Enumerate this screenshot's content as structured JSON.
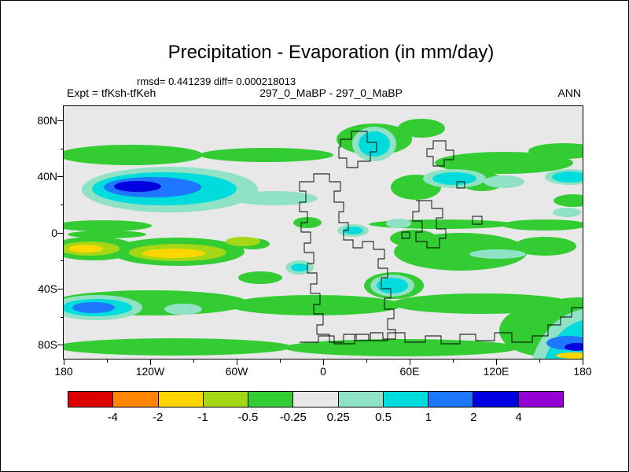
{
  "header": {
    "title": "Precipitation - Evaporation (in mm/day)",
    "stats_line": "rmsd= 0.441239 diff= 0.000218013",
    "case_line": "297_0_MaBP - 297_0_MaBP",
    "expt_label": "Expt = tfKsh-tfKeh",
    "season_label": "ANN"
  },
  "axes": {
    "y_ticks": [
      {
        "label": "80N",
        "lat": 80
      },
      {
        "label": "40N",
        "lat": 40
      },
      {
        "label": "0",
        "lat": 0
      },
      {
        "label": "40S",
        "lat": -40
      },
      {
        "label": "80S",
        "lat": -80
      }
    ],
    "x_ticks": [
      {
        "label": "180",
        "lon": -180
      },
      {
        "label": "120W",
        "lon": -120
      },
      {
        "label": "60W",
        "lon": -60
      },
      {
        "label": "0",
        "lon": 0
      },
      {
        "label": "60E",
        "lon": 60
      },
      {
        "label": "120E",
        "lon": 120
      },
      {
        "label": "180",
        "lon": 180
      }
    ],
    "lat_range": [
      -90,
      90
    ],
    "lon_range": [
      -180,
      180
    ]
  },
  "colorbar": {
    "labels": [
      "-4",
      "-2",
      "-1",
      "-0.5",
      "-0.25",
      "0.25",
      "0.5",
      "1",
      "2",
      "4"
    ],
    "levels": [
      -4,
      -2,
      -1,
      -0.5,
      -0.25,
      0.25,
      0.5,
      1,
      2,
      4
    ],
    "colors": [
      "#dd0000",
      "#ff8400",
      "#ffd600",
      "#a4d815",
      "#33cc33",
      "#e8e8e8",
      "#8fe2c4",
      "#00dcdc",
      "#1e78ff",
      "#0000e0",
      "#9400d3"
    ]
  },
  "map": {
    "background": "#e8e8e8",
    "coastline_color": "#000000"
  },
  "chart_data": {
    "type": "heatmap",
    "subtype": "filled_contour_world_map",
    "title": "Precipitation - Evaporation (in mm/day)",
    "units": "mm/day",
    "season": "ANN",
    "experiment": "tfKsh-tfKeh",
    "case_difference": "297_0_MaBP - 297_0_MaBP",
    "rmsd": 0.441239,
    "diff": 0.000218013,
    "x_axis": {
      "label_ticks": [
        "180",
        "120W",
        "60W",
        "0",
        "60E",
        "120E",
        "180"
      ],
      "range_deg_lon": [
        -180,
        180
      ]
    },
    "y_axis": {
      "label_ticks": [
        "80N",
        "40N",
        "0",
        "40S",
        "80S"
      ],
      "range_deg_lat": [
        -90,
        90
      ]
    },
    "contour_levels_mm_day": [
      -4,
      -2,
      -1,
      -0.5,
      -0.25,
      0.25,
      0.5,
      1,
      2,
      4
    ],
    "palette_hex": [
      "#dd0000",
      "#ff8400",
      "#ffd600",
      "#a4d815",
      "#33cc33",
      "#e8e8e8",
      "#8fe2c4",
      "#00dcdc",
      "#1e78ff",
      "#0000e0",
      "#9400d3"
    ],
    "palette_meaning": [
      "< -4",
      "-4 to -2",
      "-2 to -1",
      "-1 to -0.5",
      "-0.5 to -0.25",
      "-0.25 to 0.25 (background)",
      "0.25 to 0.5",
      "0.5 to 1",
      "1 to 2",
      "2 to 4",
      "> 4"
    ],
    "notable_features": [
      "Large positive anomaly (cyan/blue core up to 2-4 mm/day) centered near 20N, 130W-80W",
      "Positive (cyan) patch near 55-70N over the north-central landmass",
      "Weak negative band (green, -0.5 to -0.25) along 40-55N across most longitudes",
      "Negative anomalies with yellow cores (-2 to -1 mm/day) near 10S between 160W and 100W and at the western edge",
      "Broad green anomaly over tropics east of 30E near 10-25S",
      "Weak negative (green) zonal bands along 45-60S and 75-85S",
      "Positive anomaly (cyan/blue) near 55S, 170W-150W",
      "Strong positive anomaly (cyan/blue with yellow streak) in the bottom-right corner near 80S, 140E-180",
      "Most of the domain within -0.25 to 0.25 mm/day (light gray background)"
    ]
  }
}
